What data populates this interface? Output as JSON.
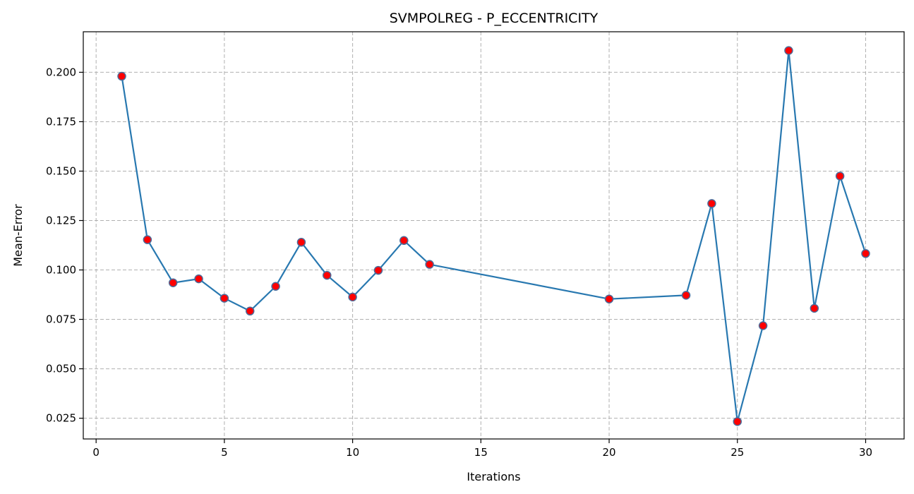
{
  "chart_data": {
    "type": "line",
    "title": "SVMPOLREG - P_ECCENTRICITY",
    "xlabel": "Iterations",
    "ylabel": "Mean-Error",
    "xlim": [
      -0.5,
      31.5
    ],
    "ylim": [
      0.0145,
      0.2205
    ],
    "x_ticks": [
      0,
      5,
      10,
      15,
      20,
      25,
      30
    ],
    "y_ticks": [
      0.025,
      0.05,
      0.075,
      0.1,
      0.125,
      0.15,
      0.175,
      0.2
    ],
    "grid": true,
    "line_color": "#2878b0",
    "marker_face_color": "#ff0000",
    "marker_edge_color": "#4d6b99",
    "series": [
      {
        "x": [
          1,
          2,
          3,
          4,
          5,
          6,
          7,
          8,
          9,
          10,
          11,
          12,
          13,
          20,
          23,
          24,
          25,
          26,
          27,
          28,
          29,
          30
        ],
        "y": [
          0.198,
          0.1153,
          0.0935,
          0.0955,
          0.0857,
          0.0792,
          0.0917,
          0.114,
          0.0973,
          0.0863,
          0.0998,
          0.1149,
          0.1028,
          0.0853,
          0.0872,
          0.1336,
          0.0233,
          0.0718,
          0.211,
          0.0806,
          0.1475,
          0.1083
        ]
      }
    ]
  }
}
